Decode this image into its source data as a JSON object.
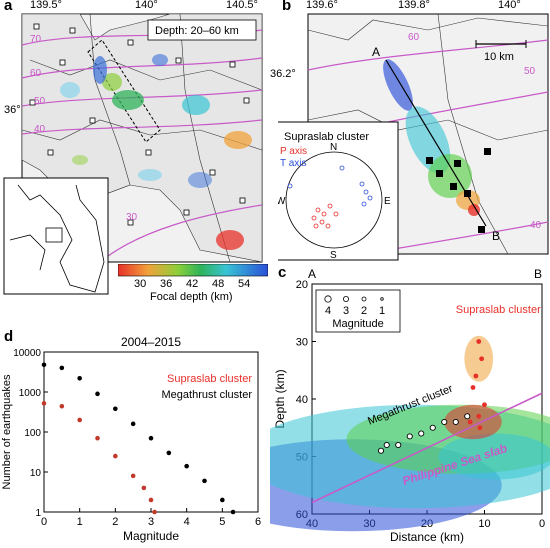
{
  "figure": {
    "panels": {
      "a": {
        "label": "a",
        "top_ticks": [
          "139.5°",
          "140°",
          "140.5°"
        ],
        "left_tick": "36°",
        "depth_box": "Depth: 20–60 km",
        "contours": [
          "70",
          "60",
          "50",
          "40",
          "30"
        ],
        "colorbar": {
          "ticks": [
            "30",
            "36",
            "42",
            "48",
            "54"
          ],
          "label": "Focal depth (km)"
        }
      },
      "b": {
        "label": "b",
        "top_ticks": [
          "139.6°",
          "139.8°",
          "140°"
        ],
        "left_tick": "36.2°",
        "scale_label": "10 km",
        "contours": [
          "60",
          "50",
          "40"
        ],
        "profile_start": "A",
        "profile_end": "B",
        "inset": {
          "title": "Supraslab cluster",
          "p_axis": "P axis",
          "t_axis": "T axis",
          "n": "N",
          "s": "S",
          "e": "E",
          "w": "W"
        }
      },
      "c": {
        "label": "c",
        "end_left": "A",
        "end_right": "B",
        "legend_nums": [
          "4",
          "3",
          "2",
          "1"
        ],
        "legend_title": "Magnitude",
        "supraslab_text": "Supraslab cluster",
        "megathrust_text": "Megathrust cluster",
        "slab_text": "Philippine Sea slab"
      },
      "d": {
        "label": "d",
        "title": "2004–2015",
        "legend_supra": "Supraslab cluster",
        "legend_mega": "Megathrust cluster"
      }
    }
  },
  "chart_data": [
    {
      "type": "scatter",
      "panel": "c",
      "xlabel": "Distance (km)",
      "ylabel": "Depth (km)",
      "xlim": [
        40,
        0
      ],
      "ylim": [
        60,
        20
      ],
      "x_ticks": [
        "40",
        "30",
        "20",
        "10",
        "0"
      ],
      "y_ticks": [
        "20",
        "30",
        "40",
        "50",
        "60"
      ],
      "slab_line": {
        "x": [
          40,
          0
        ],
        "y": [
          58,
          39
        ]
      },
      "series": [
        {
          "name": "Supraslab cluster",
          "color": "#e8302a",
          "x": [
            11,
            10.5,
            11.5,
            12,
            10,
            11,
            12.5,
            10.8
          ],
          "y": [
            30,
            33,
            36,
            38,
            41,
            43,
            44,
            45
          ]
        },
        {
          "name": "Megathrust cluster",
          "color": "#000000",
          "x": [
            25,
            23,
            21,
            19,
            17,
            15,
            13,
            28,
            27
          ],
          "y": [
            48,
            46.5,
            46,
            45,
            44,
            44,
            43,
            49,
            48
          ]
        }
      ]
    },
    {
      "type": "scatter",
      "panel": "d",
      "title": "2004–2015",
      "xlabel": "Magnitude",
      "ylabel": "Number of earthquakes",
      "log_y": true,
      "xlim": [
        0,
        6
      ],
      "ylim": [
        1,
        10000
      ],
      "x_ticks": [
        "0",
        "1",
        "2",
        "3",
        "4",
        "5",
        "6"
      ],
      "y_ticks": [
        "1",
        "10",
        "100",
        "1000",
        "10000"
      ],
      "series": [
        {
          "name": "Supraslab cluster",
          "color": "#c0392b",
          "x": [
            0,
            0.5,
            1.0,
            1.5,
            2.0,
            2.5,
            2.8,
            3.0,
            3.1
          ],
          "y": [
            520,
            440,
            200,
            70,
            25,
            8,
            4,
            2,
            1
          ]
        },
        {
          "name": "Megathrust cluster",
          "color": "#000000",
          "x": [
            0,
            0.5,
            1.0,
            1.5,
            2.0,
            2.5,
            3.0,
            3.5,
            4.0,
            4.5,
            5.0,
            5.3
          ],
          "y": [
            4800,
            4000,
            2200,
            900,
            380,
            160,
            70,
            30,
            14,
            6,
            2,
            1
          ]
        }
      ]
    }
  ]
}
